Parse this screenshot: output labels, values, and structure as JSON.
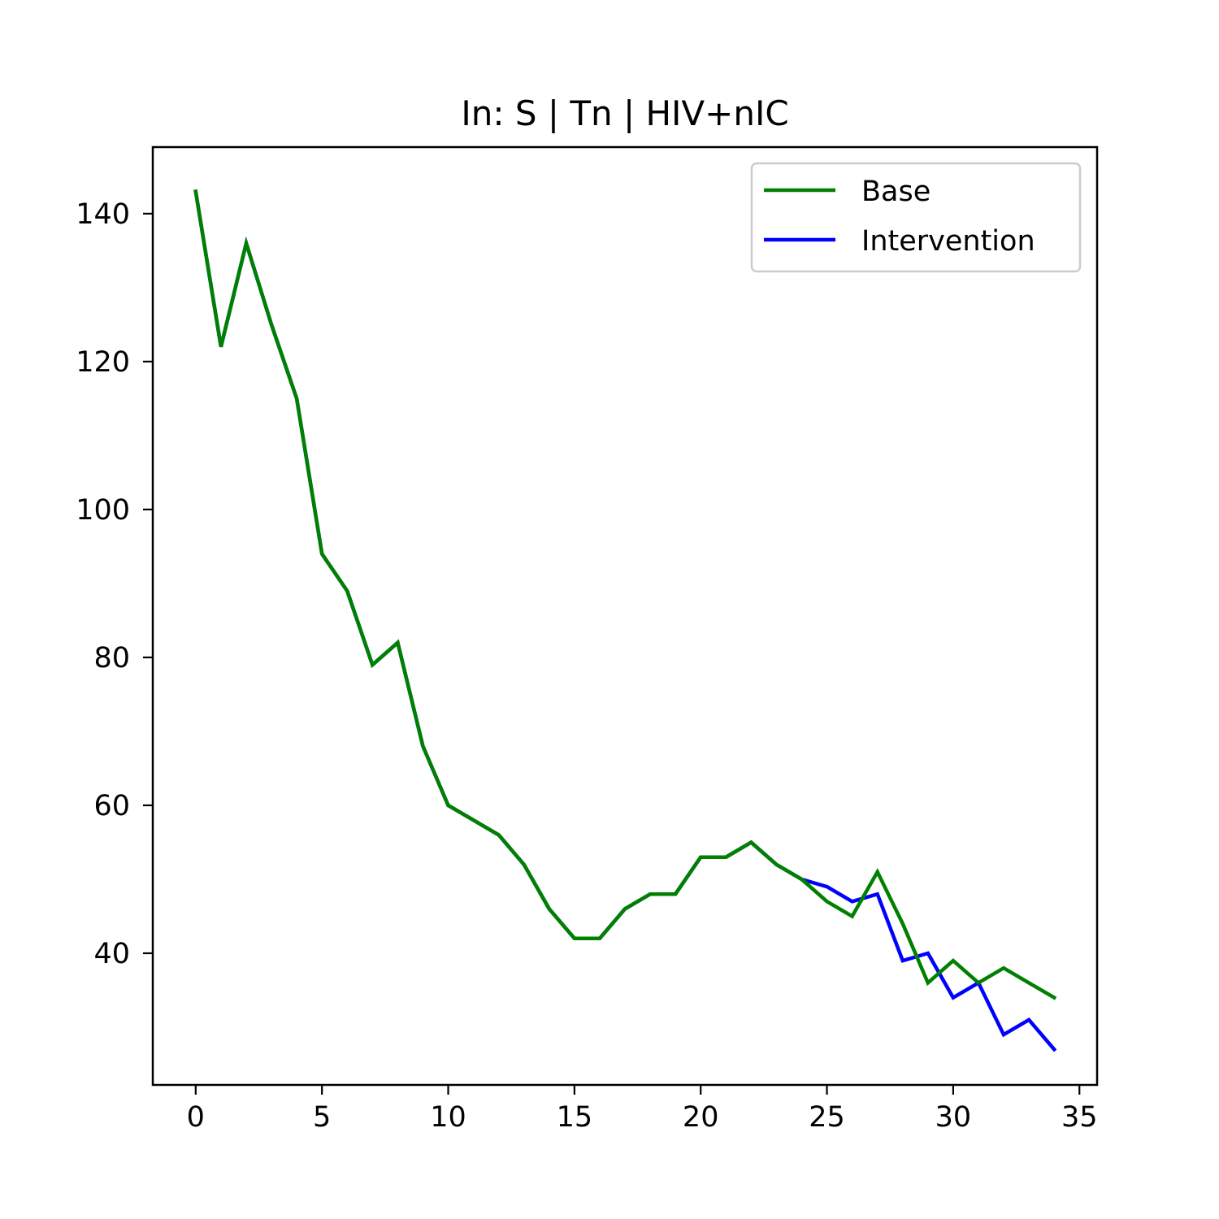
{
  "chart_data": {
    "type": "line",
    "title": "In: S | Tn | HIV+nIC",
    "xlabel": "",
    "ylabel": "",
    "xlim": [
      -1.7,
      35.7
    ],
    "ylim": [
      22.2,
      149.0
    ],
    "xticks": [
      0,
      5,
      10,
      15,
      20,
      25,
      30,
      35
    ],
    "yticks": [
      40,
      60,
      80,
      100,
      120,
      140
    ],
    "grid": false,
    "legend_position": "top-right",
    "x": [
      0,
      1,
      2,
      3,
      4,
      5,
      6,
      7,
      8,
      9,
      10,
      11,
      12,
      13,
      14,
      15,
      16,
      17,
      18,
      19,
      20,
      21,
      22,
      23,
      24,
      25,
      26,
      27,
      28,
      29,
      30,
      31,
      32,
      33,
      34
    ],
    "series": [
      {
        "name": "Intervention",
        "color": "#0000ff",
        "values": [
          143,
          122,
          136,
          125,
          115,
          94,
          89,
          79,
          82,
          68,
          60,
          58,
          56,
          52,
          46,
          42,
          42,
          46,
          48,
          48,
          53,
          53,
          55,
          52,
          50,
          49,
          47,
          48,
          39,
          40,
          34,
          36,
          29,
          31,
          27
        ]
      },
      {
        "name": "Base",
        "color": "#008000",
        "values": [
          143,
          122,
          136,
          125,
          115,
          94,
          89,
          79,
          82,
          68,
          60,
          58,
          56,
          52,
          46,
          42,
          42,
          46,
          48,
          48,
          53,
          53,
          55,
          52,
          50,
          47,
          45,
          51,
          44,
          36,
          39,
          36,
          38,
          36,
          34
        ]
      }
    ],
    "legend": [
      "Base",
      "Intervention"
    ]
  }
}
